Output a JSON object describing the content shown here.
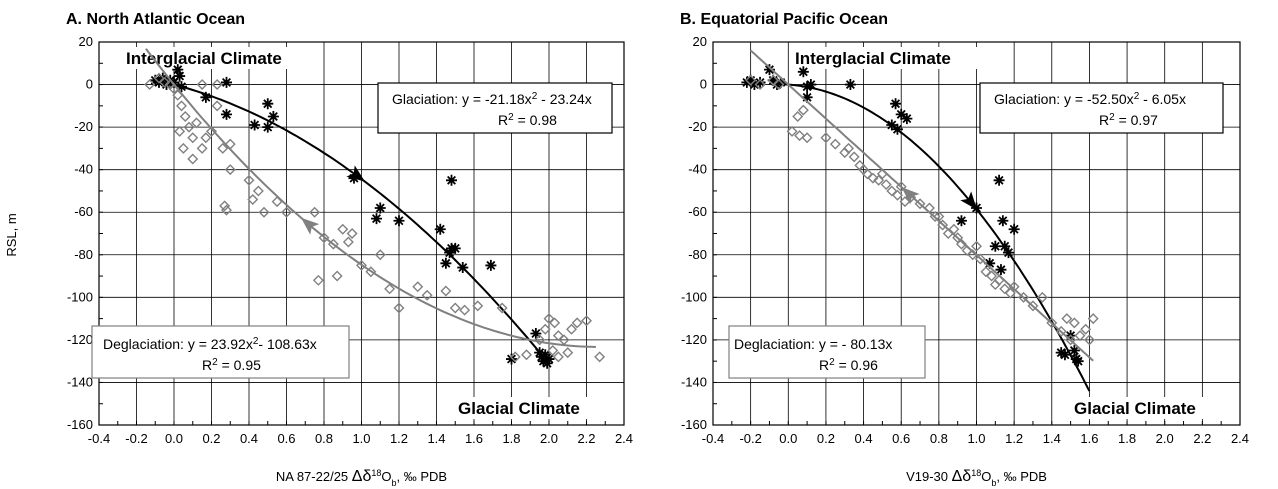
{
  "chart_data": [
    {
      "type": "scatter",
      "title": "A. North Atlantic Ocean",
      "xlabel_prefix": "NA 87-22/25",
      "xlabel_delta": "Δδ",
      "xlabel_sup": "18",
      "xlabel_o": "O",
      "xlabel_sub": "b",
      "xlabel_suffix": ", ‰ PDB",
      "ylabel": "RSL, m",
      "xlim": [
        -0.4,
        2.4
      ],
      "ylim": [
        -160,
        20
      ],
      "xticks": [
        -0.4,
        -0.2,
        0.0,
        0.2,
        0.4,
        0.6,
        0.8,
        1.0,
        1.2,
        1.4,
        1.6,
        1.8,
        2.0,
        2.2,
        2.4
      ],
      "xticklabels": [
        "-0.4",
        "-0.2",
        "0.0",
        "0.2",
        "0.4",
        "0.6",
        "0.8",
        "1.0",
        "1.2",
        "1.4",
        "1.6",
        "1.8",
        "2.0",
        "2.2",
        "2.4"
      ],
      "yticks": [
        20,
        0,
        -20,
        -40,
        -60,
        -80,
        -100,
        -120,
        -140,
        -160
      ],
      "yticklabels": [
        "20",
        "0",
        "-20",
        "-40",
        "-60",
        "-80",
        "-100",
        "-120",
        "-140",
        "-160"
      ],
      "grid": true,
      "top_label": "Interglacial Climate",
      "bottom_label": "Glacial Climate",
      "glaciation_eq": "Glaciation: y = -21.18x",
      "glaciation_eq_tail": " - 23.24x",
      "glaciation_r2": "= 0.98",
      "deglaciation_eq": "Deglaciation: y = 23.92x",
      "deglaciation_eq_tail": "- 108.63x",
      "deglaciation_r2": "= 0.95",
      "series": [
        {
          "name": "Glaciation",
          "marker": "asterisk",
          "color": "#000000",
          "curve": {
            "a": -21.18,
            "b": -23.24,
            "c": 0,
            "x_range": [
              0.0,
              2.0
            ]
          },
          "points": [
            [
              -0.08,
              1
            ],
            [
              -0.06,
              3
            ],
            [
              -0.04,
              0
            ],
            [
              -0.02,
              2
            ],
            [
              0.0,
              1
            ],
            [
              0.02,
              7
            ],
            [
              0.04,
              -1
            ],
            [
              0.03,
              4
            ],
            [
              -0.1,
              2
            ],
            [
              0.17,
              -6
            ],
            [
              0.28,
              1
            ],
            [
              0.28,
              -14
            ],
            [
              0.43,
              -19
            ],
            [
              0.5,
              -9
            ],
            [
              0.5,
              -20
            ],
            [
              0.53,
              -15
            ],
            [
              0.96,
              -44
            ],
            [
              1.08,
              -63
            ],
            [
              1.1,
              -58
            ],
            [
              1.2,
              -64
            ],
            [
              1.42,
              -68
            ],
            [
              1.45,
              -84
            ],
            [
              1.47,
              -79
            ],
            [
              1.48,
              -45
            ],
            [
              1.48,
              -77
            ],
            [
              1.5,
              -77
            ],
            [
              1.54,
              -86
            ],
            [
              1.69,
              -85
            ],
            [
              1.8,
              -129
            ],
            [
              1.93,
              -117
            ],
            [
              1.95,
              -126
            ],
            [
              1.96,
              -128
            ],
            [
              1.97,
              -130
            ],
            [
              1.98,
              -127
            ],
            [
              1.99,
              -131
            ],
            [
              2.0,
              -129
            ]
          ]
        },
        {
          "name": "Deglaciation",
          "marker": "diamond",
          "color": "#808080",
          "curve": {
            "a": 23.92,
            "b": -108.63,
            "c": 0,
            "x_range": [
              -0.15,
              2.25
            ]
          },
          "points": [
            [
              -0.13,
              0
            ],
            [
              -0.08,
              3
            ],
            [
              -0.05,
              1
            ],
            [
              -0.02,
              0
            ],
            [
              0.0,
              -2
            ],
            [
              0.02,
              -5
            ],
            [
              0.04,
              -10
            ],
            [
              0.06,
              -15
            ],
            [
              0.03,
              -22
            ],
            [
              0.05,
              -30
            ],
            [
              0.08,
              -20
            ],
            [
              0.1,
              -25
            ],
            [
              0.12,
              -18
            ],
            [
              0.1,
              -35
            ],
            [
              0.15,
              0
            ],
            [
              0.15,
              -30
            ],
            [
              0.17,
              -25
            ],
            [
              0.2,
              -22
            ],
            [
              0.23,
              0
            ],
            [
              0.23,
              -10
            ],
            [
              0.26,
              -30
            ],
            [
              0.27,
              -57
            ],
            [
              0.28,
              -59
            ],
            [
              0.3,
              -28
            ],
            [
              0.3,
              -40
            ],
            [
              0.4,
              -45
            ],
            [
              0.42,
              -54
            ],
            [
              0.45,
              -50
            ],
            [
              0.48,
              -60
            ],
            [
              0.55,
              -55
            ],
            [
              0.6,
              -60
            ],
            [
              0.75,
              -60
            ],
            [
              0.77,
              -92
            ],
            [
              0.8,
              -72
            ],
            [
              0.85,
              -75
            ],
            [
              0.87,
              -90
            ],
            [
              0.9,
              -68
            ],
            [
              0.93,
              -74
            ],
            [
              0.95,
              -70
            ],
            [
              1.0,
              -85
            ],
            [
              1.05,
              -88
            ],
            [
              1.1,
              -80
            ],
            [
              1.15,
              -96
            ],
            [
              1.2,
              -105
            ],
            [
              1.3,
              -95
            ],
            [
              1.35,
              -99
            ],
            [
              1.45,
              -97
            ],
            [
              1.5,
              -105
            ],
            [
              1.55,
              -106
            ],
            [
              1.62,
              -104
            ],
            [
              1.75,
              -105
            ],
            [
              1.82,
              -128
            ],
            [
              1.88,
              -127
            ],
            [
              1.95,
              -120
            ],
            [
              1.98,
              -115
            ],
            [
              2.0,
              -110
            ],
            [
              2.02,
              -125
            ],
            [
              2.03,
              -112
            ],
            [
              2.05,
              -118
            ],
            [
              2.05,
              -128
            ],
            [
              2.08,
              -120
            ],
            [
              2.1,
              -126
            ],
            [
              2.12,
              -115
            ],
            [
              2.15,
              -112
            ],
            [
              2.2,
              -111
            ],
            [
              2.27,
              -128
            ]
          ]
        }
      ]
    },
    {
      "type": "scatter",
      "title": "B. Equatorial Pacific Ocean",
      "xlabel_prefix": "V19-30",
      "xlabel_delta": "Δδ",
      "xlabel_sup": "18",
      "xlabel_o": "O",
      "xlabel_sub": "b",
      "xlabel_suffix": ", ‰ PDB",
      "ylabel": "",
      "xlim": [
        -0.4,
        2.4
      ],
      "ylim": [
        -160,
        20
      ],
      "xticks": [
        -0.4,
        -0.2,
        0.0,
        0.2,
        0.4,
        0.6,
        0.8,
        1.0,
        1.2,
        1.4,
        1.6,
        1.8,
        2.0,
        2.2,
        2.4
      ],
      "xticklabels": [
        "-0.4",
        "-0.2",
        "0.0",
        "0.2",
        "0.4",
        "0.6",
        "0.8",
        "1.0",
        "1.2",
        "1.4",
        "1.6",
        "1.8",
        "2.0",
        "2.2",
        "2.4"
      ],
      "yticks": [
        20,
        0,
        -20,
        -40,
        -60,
        -80,
        -100,
        -120,
        -140,
        -160
      ],
      "yticklabels": [
        "20",
        "0",
        "-20",
        "-40",
        "-60",
        "-80",
        "-100",
        "-120",
        "-140",
        "-160"
      ],
      "grid": true,
      "top_label": "Interglacial Climate",
      "bottom_label": "Glacial Climate",
      "glaciation_eq": "Glaciation: y = -52.50x",
      "glaciation_eq_tail": " - 6.05x",
      "glaciation_r2": "= 0.97",
      "deglaciation_eq": "Deglaciation: y =  - 80.13x",
      "deglaciation_eq_tail": "",
      "deglaciation_r2": "= 0.96",
      "series": [
        {
          "name": "Glaciation",
          "marker": "asterisk",
          "color": "#000000",
          "curve": {
            "a": -52.5,
            "b": -6.05,
            "c": 0,
            "x_range": [
              -0.05,
              1.6
            ]
          },
          "points": [
            [
              -0.22,
              1
            ],
            [
              -0.2,
              2
            ],
            [
              -0.18,
              0
            ],
            [
              -0.15,
              1
            ],
            [
              -0.08,
              2
            ],
            [
              -0.06,
              0
            ],
            [
              -0.04,
              1
            ],
            [
              -0.1,
              7
            ],
            [
              0.08,
              6
            ],
            [
              0.1,
              -1
            ],
            [
              0.12,
              0
            ],
            [
              0.1,
              -6
            ],
            [
              0.33,
              0
            ],
            [
              0.55,
              -19
            ],
            [
              0.57,
              -9
            ],
            [
              0.58,
              -21
            ],
            [
              0.6,
              -14
            ],
            [
              0.63,
              -16
            ],
            [
              0.92,
              -64
            ],
            [
              1.0,
              -58
            ],
            [
              1.07,
              -84
            ],
            [
              1.1,
              -76
            ],
            [
              1.12,
              -45
            ],
            [
              1.13,
              -87
            ],
            [
              1.14,
              -64
            ],
            [
              1.15,
              -76
            ],
            [
              1.17,
              -79
            ],
            [
              1.2,
              -68
            ],
            [
              1.45,
              -126
            ],
            [
              1.47,
              -127
            ],
            [
              1.5,
              -118
            ],
            [
              1.52,
              -125
            ],
            [
              1.53,
              -129
            ],
            [
              1.54,
              -130
            ]
          ]
        },
        {
          "name": "Deglaciation",
          "marker": "diamond",
          "color": "#808080",
          "curve": {
            "a": 0,
            "b": -80.13,
            "c": 0,
            "x_range": [
              -0.2,
              1.62
            ]
          },
          "points": [
            [
              -0.2,
              2
            ],
            [
              -0.15,
              0
            ],
            [
              -0.08,
              2
            ],
            [
              -0.05,
              0
            ],
            [
              0.02,
              -22
            ],
            [
              0.05,
              -15
            ],
            [
              0.06,
              -24
            ],
            [
              0.08,
              -12
            ],
            [
              0.1,
              -25
            ],
            [
              0.2,
              -25
            ],
            [
              0.25,
              -28
            ],
            [
              0.3,
              -32
            ],
            [
              0.32,
              -30
            ],
            [
              0.35,
              -34
            ],
            [
              0.38,
              -38
            ],
            [
              0.4,
              -40
            ],
            [
              0.42,
              -42
            ],
            [
              0.45,
              -44
            ],
            [
              0.48,
              -45
            ],
            [
              0.5,
              -42
            ],
            [
              0.52,
              -47
            ],
            [
              0.55,
              -50
            ],
            [
              0.58,
              -52
            ],
            [
              0.6,
              -48
            ],
            [
              0.62,
              -55
            ],
            [
              0.65,
              -53
            ],
            [
              0.7,
              -56
            ],
            [
              0.75,
              -58
            ],
            [
              0.78,
              -62
            ],
            [
              0.8,
              -62
            ],
            [
              0.82,
              -66
            ],
            [
              0.85,
              -70
            ],
            [
              0.88,
              -68
            ],
            [
              0.9,
              -72
            ],
            [
              0.92,
              -75
            ],
            [
              0.95,
              -78
            ],
            [
              0.98,
              -80
            ],
            [
              1.0,
              -76
            ],
            [
              1.02,
              -82
            ],
            [
              1.05,
              -88
            ],
            [
              1.08,
              -90
            ],
            [
              1.1,
              -94
            ],
            [
              1.12,
              -92
            ],
            [
              1.15,
              -96
            ],
            [
              1.18,
              -98
            ],
            [
              1.2,
              -95
            ],
            [
              1.25,
              -100
            ],
            [
              1.3,
              -104
            ],
            [
              1.35,
              -100
            ],
            [
              1.4,
              -112
            ],
            [
              1.45,
              -116
            ],
            [
              1.48,
              -110
            ],
            [
              1.5,
              -120
            ],
            [
              1.52,
              -112
            ],
            [
              1.55,
              -118
            ],
            [
              1.58,
              -115
            ],
            [
              1.6,
              -120
            ],
            [
              1.62,
              -110
            ]
          ]
        }
      ]
    }
  ]
}
